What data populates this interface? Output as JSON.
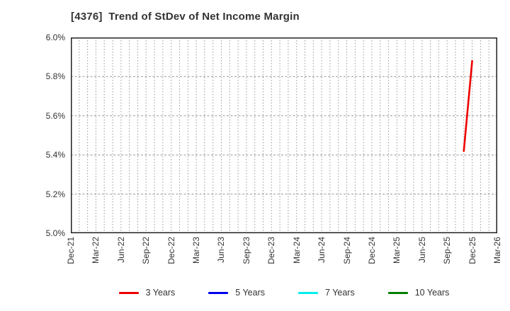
{
  "chart_data": {
    "type": "line",
    "title": "[4376]  Trend of StDev of Net Income Margin",
    "xlabel": "",
    "ylabel": "",
    "ylim": [
      5.0,
      6.0
    ],
    "y_ticks": [
      {
        "value": 6.0,
        "label": "6.0%"
      },
      {
        "value": 5.8,
        "label": "5.8%"
      },
      {
        "value": 5.6,
        "label": "5.6%"
      },
      {
        "value": 5.4,
        "label": "5.4%"
      },
      {
        "value": 5.2,
        "label": "5.2%"
      },
      {
        "value": 5.0,
        "label": "5.0%"
      }
    ],
    "x_axis": {
      "start_month": "Dec-21",
      "end_month": "Mar-26",
      "month_count": 52,
      "tick_every_months": 3,
      "tick_labels": [
        "Dec-21",
        "Mar-22",
        "Jun-22",
        "Sep-22",
        "Dec-22",
        "Mar-23",
        "Jun-23",
        "Sep-23",
        "Dec-23",
        "Mar-24",
        "Jun-24",
        "Sep-24",
        "Dec-24",
        "Mar-25",
        "Jun-25",
        "Sep-25",
        "Dec-25",
        "Mar-26"
      ]
    },
    "grid": {
      "vertical": "monthly dotted",
      "horizontal": "dashed at each 0.2% tick",
      "grid_color": "#999999",
      "frame_color": "#222222"
    },
    "legend_position": "bottom-center",
    "series": [
      {
        "name": "3 Years",
        "color": "#ee0000",
        "points": [
          {
            "x_label": "Nov-25",
            "month_index": 47,
            "y": 5.42
          },
          {
            "x_label": "Dec-25",
            "month_index": 48,
            "y": 5.88
          }
        ]
      },
      {
        "name": "5 Years",
        "color": "#0000ee",
        "points": []
      },
      {
        "name": "7 Years",
        "color": "#00eeee",
        "points": []
      },
      {
        "name": "10 Years",
        "color": "#008000",
        "points": []
      }
    ],
    "text_color": "#333333",
    "background_color": "#ffffff"
  }
}
